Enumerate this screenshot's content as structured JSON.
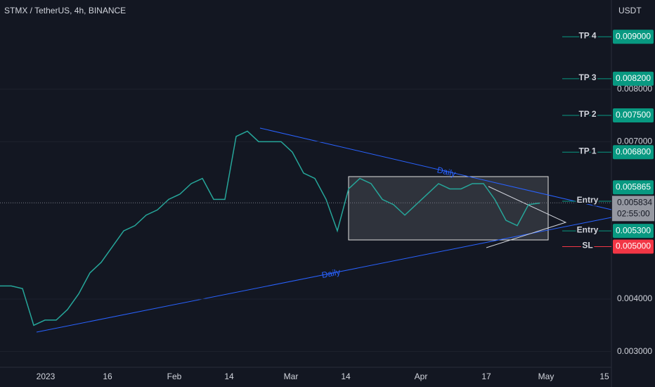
{
  "header": {
    "title": "STMX / TetherUS, 4h, BINANCE",
    "currency": "USDT"
  },
  "price_axis": {
    "ylim": [
      0.0027,
      0.0097
    ],
    "yticks": [
      {
        "value": 0.003,
        "label": "0.003000"
      },
      {
        "value": 0.004,
        "label": "0.004000"
      },
      {
        "value": 0.007,
        "label": "0.007000"
      },
      {
        "value": 0.008,
        "label": "0.008000"
      }
    ]
  },
  "time_axis": {
    "labels": [
      "2023",
      "16",
      "Feb",
      "14",
      "Mar",
      "14",
      "Apr",
      "17",
      "May",
      "15"
    ]
  },
  "price_series": {
    "color": "#26a69a",
    "values": [
      0.00425,
      0.00425,
      0.0042,
      0.0035,
      0.0036,
      0.0036,
      0.0038,
      0.0041,
      0.0045,
      0.0047,
      0.005,
      0.0053,
      0.0054,
      0.0056,
      0.0057,
      0.0059,
      0.006,
      0.0062,
      0.0063,
      0.0059,
      0.0059,
      0.0071,
      0.0072,
      0.007,
      0.007,
      0.007,
      0.0068,
      0.0064,
      0.0063,
      0.0059,
      0.0053,
      0.0061,
      0.0063,
      0.0062,
      0.0059,
      0.0058,
      0.0056,
      0.0058,
      0.006,
      0.0062,
      0.0061,
      0.0061,
      0.0062,
      0.0062,
      0.0059,
      0.0055,
      0.0054,
      0.0058,
      0.00583
    ]
  },
  "levels": [
    {
      "name": "TP 4",
      "value": 0.009,
      "label": "0.009000",
      "color": "#089981"
    },
    {
      "name": "TP 3",
      "value": 0.0082,
      "label": "0.008200",
      "color": "#089981"
    },
    {
      "name": "TP 2",
      "value": 0.0075,
      "label": "0.007500",
      "color": "#089981"
    },
    {
      "name": "TP 1",
      "value": 0.0068,
      "label": "0.006800",
      "color": "#089981"
    },
    {
      "name": "Entry",
      "value": 0.005865,
      "label": "0.005865",
      "color": "#089981"
    },
    {
      "name": "Entry",
      "value": 0.0053,
      "label": "0.005300",
      "color": "#089981"
    },
    {
      "name": "SL",
      "value": 0.005,
      "label": "0.005000",
      "color": "#f23645"
    }
  ],
  "current_price": {
    "value": 0.005834,
    "label": "0.005834",
    "countdown": "02:55:00"
  },
  "trendlines": [
    "Daily",
    "Daily"
  ]
}
